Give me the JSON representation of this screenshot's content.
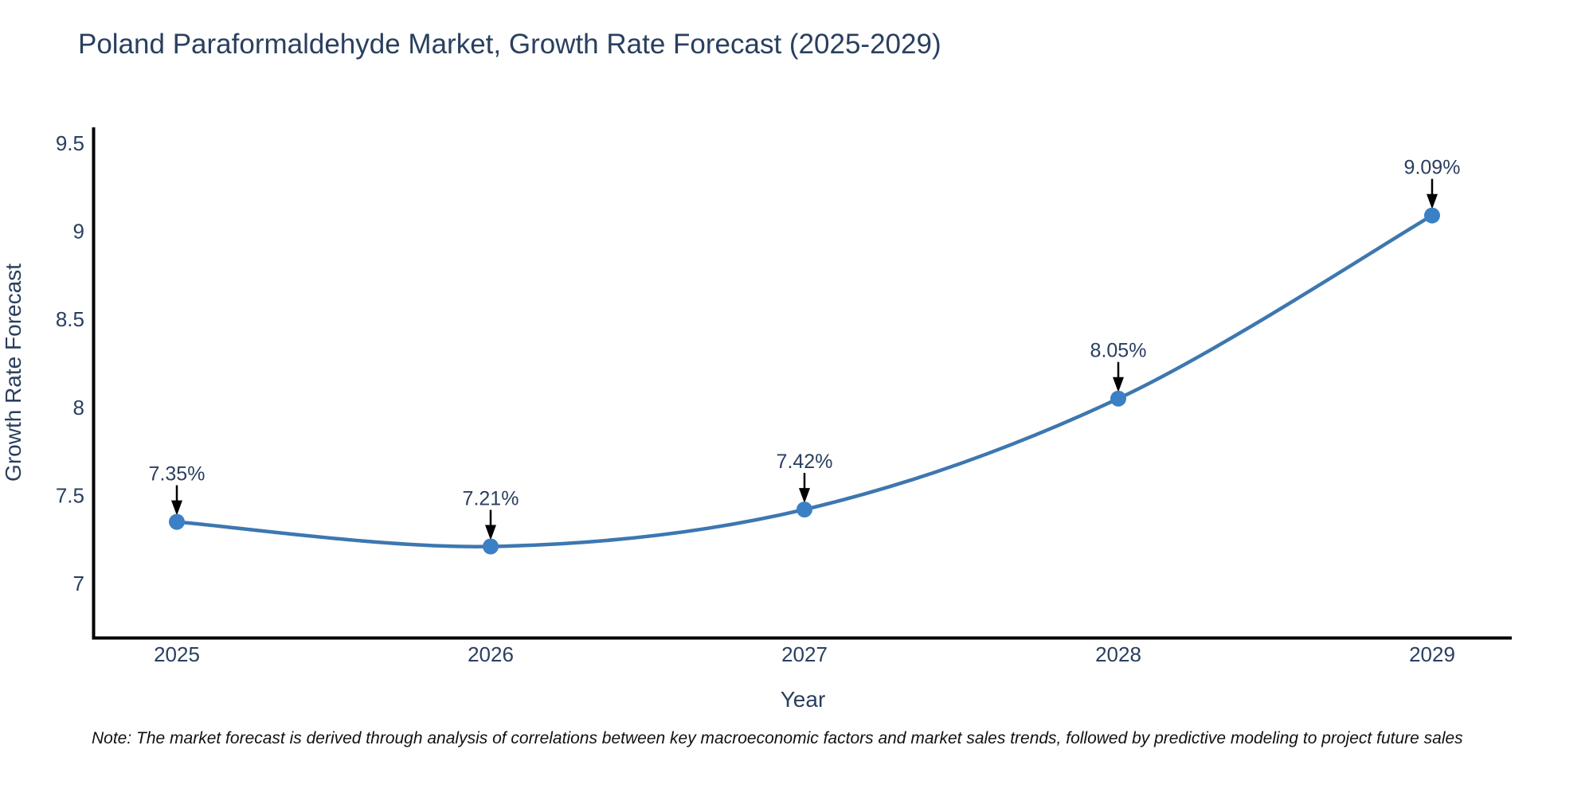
{
  "header": {
    "title": "Poland Paraformaldehyde Market, Growth Rate Forecast (2025-2029)"
  },
  "chart_data": {
    "type": "line",
    "title": "Poland Paraformaldehyde Market, Growth Rate Forecast (2025-2029)",
    "x": [
      2025,
      2026,
      2027,
      2028,
      2029
    ],
    "series": [
      {
        "name": "Growth Rate Forecast",
        "values": [
          7.35,
          7.21,
          7.42,
          8.05,
          9.09
        ]
      }
    ],
    "point_labels": [
      "7.35%",
      "7.21%",
      "7.42%",
      "8.05%",
      "9.09%"
    ],
    "xlabel": "Year",
    "ylabel": "Growth Rate Forecast",
    "xticks": [
      "2025",
      "2026",
      "2027",
      "2028",
      "2029"
    ],
    "yticks": [
      7,
      7.5,
      8,
      8.5,
      9,
      9.5
    ],
    "ytick_labels": [
      "7",
      "7.5",
      "8",
      "8.5",
      "9",
      "9.5"
    ],
    "ylim": [
      6.7,
      9.6
    ],
    "grid": false,
    "legend_position": "none",
    "line_shape": "spline",
    "annotation_arrows": true,
    "colors": {
      "line": "#3d77b0",
      "marker": "#3b80c4",
      "axis": "#000000",
      "text": "#2a3f5f",
      "arrow": "#000000",
      "background": "#ffffff"
    }
  },
  "footer": {
    "note": "Note: The market forecast is derived through analysis of correlations between key macroeconomic factors and market sales trends, followed by predictive modeling to project future sales"
  }
}
